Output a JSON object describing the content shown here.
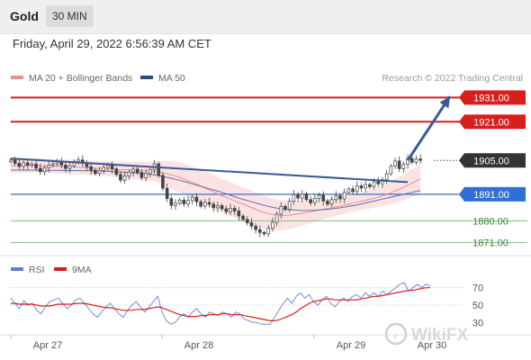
{
  "header": {
    "title": "Gold",
    "timeframe": "30 MIN"
  },
  "timestamp": "Friday, April 29, 2022 6:56:39 AM CET",
  "watermark": "WikiFX",
  "chart_data": [
    {
      "type": "candlestick",
      "legend": [
        {
          "label": "MA 20 + Bollinger Bands",
          "color": "#f08c8c"
        },
        {
          "label": "MA 50",
          "color": "#2b4c7e"
        }
      ],
      "credit": "Research © 2022 Trading Central",
      "x_ticks": [
        "Apr 27",
        "Apr 28",
        "Apr 29",
        "Apr 30"
      ],
      "levels": [
        {
          "value": 1931.0,
          "label": "1931.00",
          "type": "resistance",
          "color": "#d91e1e"
        },
        {
          "value": 1921.0,
          "label": "1921.00",
          "type": "resistance",
          "color": "#d91e1e"
        },
        {
          "value": 1905.0,
          "label": "1905.00",
          "type": "last-price",
          "color": "#333333"
        },
        {
          "value": 1891.0,
          "label": "1891.00",
          "type": "pivot",
          "color": "#2f6fd6"
        },
        {
          "value": 1880.0,
          "label": "1880.00",
          "type": "support",
          "color": "#2e8b2e"
        },
        {
          "value": 1871.0,
          "label": "1871.00",
          "type": "support",
          "color": "#2e8b2e"
        }
      ],
      "close": [
        1905.2,
        1903.8,
        1902.5,
        1904.0,
        1902.9,
        1903.5,
        1901.8,
        1900.4,
        1901.9,
        1903.0,
        1903.6,
        1904.3,
        1903.1,
        1901.7,
        1902.8,
        1904.5,
        1905.2,
        1903.9,
        1902.4,
        1901.0,
        1899.6,
        1900.8,
        1902.1,
        1903.0,
        1901.5,
        1899.2,
        1896.8,
        1898.5,
        1900.2,
        1901.4,
        1900.0,
        1897.9,
        1899.6,
        1901.2,
        1903.6,
        1898.8,
        1893.5,
        1889.2,
        1886.4,
        1887.3,
        1888.6,
        1887.0,
        1888.4,
        1889.8,
        1887.9,
        1886.1,
        1887.6,
        1886.9,
        1885.4,
        1886.3,
        1885.0,
        1883.8,
        1885.2,
        1884.1,
        1882.0,
        1880.6,
        1879.2,
        1877.8,
        1876.4,
        1875.2,
        1874.6,
        1876.9,
        1879.4,
        1882.8,
        1886.0,
        1884.7,
        1888.1,
        1890.9,
        1889.4,
        1891.2,
        1888.8,
        1887.5,
        1889.3,
        1890.6,
        1888.2,
        1886.9,
        1888.8,
        1890.4,
        1889.1,
        1891.8,
        1893.2,
        1892.1,
        1894.5,
        1893.6,
        1895.0,
        1894.1,
        1896.2,
        1895.3,
        1897.0,
        1899.5,
        1902.6,
        1904.8,
        1901.6,
        1903.4,
        1905.8,
        1904.2,
        1905.6,
        1905.0
      ],
      "ma20": [
        1902.8,
        1902.9,
        1902.9,
        1903.0,
        1903.0,
        1903.0,
        1902.9,
        1902.8,
        1902.7,
        1902.7,
        1902.6,
        1902.6,
        1902.5,
        1902.4,
        1902.3,
        1902.3,
        1902.2,
        1902.1,
        1902.0,
        1901.9,
        1901.8,
        1901.7,
        1901.6,
        1901.5,
        1901.4,
        1901.3,
        1901.2,
        1901.1,
        1901.0,
        1900.9,
        1900.8,
        1900.7,
        1900.6,
        1900.5,
        1900.4,
        1900.2,
        1899.9,
        1899.5,
        1899.0,
        1898.5,
        1898.0,
        1897.3,
        1896.5,
        1895.9,
        1895.2,
        1894.4,
        1893.6,
        1892.8,
        1892.0,
        1891.2,
        1890.4,
        1889.7,
        1889.0,
        1888.3,
        1887.6,
        1886.9,
        1886.2,
        1885.5,
        1884.8,
        1884.1,
        1883.5,
        1883.0,
        1882.6,
        1882.4,
        1882.3,
        1882.3,
        1882.4,
        1882.6,
        1882.9,
        1883.2,
        1883.5,
        1883.8,
        1884.1,
        1884.5,
        1884.8,
        1885.1,
        1885.4,
        1885.8,
        1886.1,
        1886.5,
        1886.9,
        1887.3,
        1887.7,
        1888.1,
        1888.5,
        1888.9,
        1889.3,
        1889.8,
        1890.3,
        1890.9,
        1891.6,
        1892.4,
        1893.1,
        1893.9,
        1894.8,
        1895.6,
        1896.5,
        1897.3
      ],
      "ma50": [
        1901.0,
        1901.0,
        1901.0,
        1901.0,
        1901.0,
        1901.0,
        1901.0,
        1900.9,
        1900.9,
        1900.9,
        1900.9,
        1900.9,
        1900.9,
        1900.8,
        1900.8,
        1900.8,
        1900.8,
        1900.7,
        1900.7,
        1900.7,
        1900.6,
        1900.6,
        1900.5,
        1900.5,
        1900.4,
        1900.3,
        1900.2,
        1900.1,
        1900.0,
        1899.9,
        1899.8,
        1899.6,
        1899.4,
        1899.2,
        1899.0,
        1898.7,
        1898.4,
        1898.0,
        1897.6,
        1897.2,
        1896.8,
        1896.3,
        1895.8,
        1895.3,
        1894.8,
        1894.3,
        1893.8,
        1893.3,
        1892.8,
        1892.3,
        1891.8,
        1891.2,
        1890.6,
        1890.0,
        1889.4,
        1888.9,
        1888.4,
        1887.9,
        1887.4,
        1886.9,
        1886.4,
        1886.0,
        1885.6,
        1885.3,
        1885.0,
        1884.8,
        1884.6,
        1884.5,
        1884.4,
        1884.3,
        1884.3,
        1884.3,
        1884.4,
        1884.5,
        1884.6,
        1884.8,
        1885.0,
        1885.2,
        1885.4,
        1885.7,
        1886.0,
        1886.3,
        1886.6,
        1887.0,
        1887.4,
        1887.8,
        1888.2,
        1888.6,
        1889.0,
        1889.4,
        1889.8,
        1890.2,
        1890.6,
        1891.0,
        1891.4,
        1891.8,
        1892.2,
        1892.5
      ],
      "bb_width": [
        3.2,
        3.2,
        3.1,
        3.1,
        3.0,
        3.0,
        3.0,
        3.0,
        3.0,
        3.0,
        3.0,
        3.0,
        3.0,
        3.0,
        3.0,
        3.0,
        3.0,
        3.0,
        3.0,
        3.0,
        3.0,
        3.0,
        3.0,
        3.0,
        3.1,
        3.2,
        3.3,
        3.4,
        3.5,
        3.6,
        3.7,
        3.8,
        3.9,
        4.0,
        4.2,
        4.5,
        4.9,
        5.3,
        5.7,
        6.0,
        6.2,
        6.4,
        6.5,
        6.6,
        6.7,
        6.8,
        6.9,
        7.0,
        7.0,
        7.0,
        7.0,
        7.0,
        7.0,
        7.0,
        7.0,
        7.0,
        7.0,
        7.0,
        7.0,
        7.0,
        7.0,
        6.8,
        6.6,
        6.4,
        6.2,
        6.0,
        5.8,
        5.6,
        5.4,
        5.2,
        5.0,
        4.8,
        4.6,
        4.4,
        4.2,
        4.0,
        3.9,
        3.8,
        3.7,
        3.6,
        3.5,
        3.5,
        3.5,
        3.6,
        3.7,
        3.8,
        3.9,
        4.0,
        4.2,
        4.4,
        4.7,
        5.0,
        5.2,
        5.4,
        5.6,
        5.8,
        6.0,
        6.2
      ],
      "trendline": {
        "from": [
          0,
          1905.8
        ],
        "to": [
          94,
          1896.0
        ]
      },
      "projection": {
        "from": [
          94,
          1905.0
        ],
        "to": [
          104,
          1931.5
        ]
      }
    },
    {
      "type": "line",
      "name": "RSI panel",
      "legend": [
        {
          "label": "RSI",
          "color": "#5b7fd6"
        },
        {
          "label": "9MA",
          "color": "#d91e1e"
        }
      ],
      "y_ticks": [
        70,
        50,
        30
      ],
      "ylim": [
        20,
        80
      ],
      "rsi": [
        58,
        52,
        46,
        55,
        50,
        52,
        44,
        40,
        48,
        54,
        56,
        58,
        52,
        46,
        50,
        56,
        58,
        52,
        46,
        40,
        36,
        42,
        48,
        52,
        46,
        40,
        36,
        44,
        50,
        54,
        48,
        42,
        48,
        54,
        60,
        42,
        32,
        28,
        30,
        36,
        40,
        36,
        42,
        46,
        40,
        36,
        42,
        40,
        38,
        42,
        40,
        36,
        42,
        40,
        34,
        32,
        30,
        30,
        28,
        28,
        28,
        36,
        44,
        52,
        58,
        52,
        60,
        64,
        58,
        62,
        54,
        50,
        56,
        60,
        52,
        48,
        54,
        58,
        54,
        60,
        62,
        58,
        64,
        60,
        64,
        60,
        66,
        62,
        66,
        70,
        74,
        76,
        66,
        70,
        74,
        70,
        74,
        72
      ],
      "ma9": [
        52,
        52,
        51,
        51,
        51,
        51,
        50,
        49,
        49,
        49,
        50,
        51,
        51,
        51,
        51,
        52,
        52,
        52,
        51,
        50,
        49,
        48,
        47,
        47,
        46,
        45,
        44,
        44,
        44,
        45,
        45,
        45,
        46,
        47,
        48,
        47,
        45,
        43,
        41,
        39,
        38,
        37,
        37,
        37,
        38,
        38,
        39,
        39,
        39,
        40,
        40,
        39,
        39,
        39,
        38,
        37,
        36,
        35,
        34,
        33,
        32,
        32,
        33,
        35,
        37,
        39,
        42,
        46,
        49,
        52,
        54,
        55,
        56,
        57,
        57,
        56,
        56,
        56,
        56,
        56,
        56,
        57,
        58,
        59,
        60,
        60,
        61,
        62,
        63,
        64,
        65,
        66,
        67,
        67,
        68,
        69,
        70,
        70
      ]
    }
  ]
}
